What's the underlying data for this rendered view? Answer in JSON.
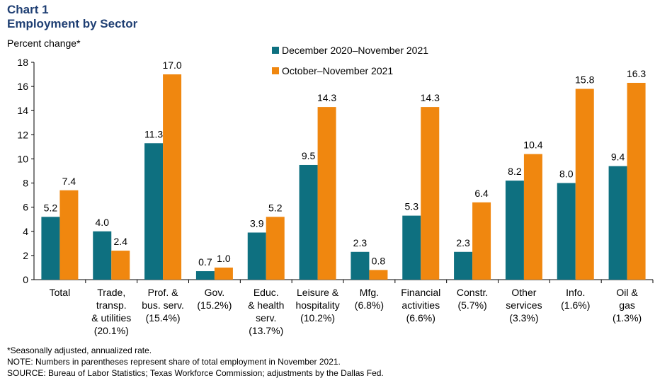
{
  "header": {
    "chart_number": "Chart 1",
    "title": "Employment by Sector",
    "units": "Percent change*"
  },
  "notes": [
    "*Seasonally adjusted, annualized rate.",
    "NOTE: Numbers in parentheses represent share of total employment in November 2021.",
    "SOURCE: Bureau of Labor Statistics; Texas Workforce Commission; adjustments by the Dallas Fed."
  ],
  "colors": {
    "series1": "#0e7080",
    "series2": "#f0870f",
    "title": "#1f3f73"
  },
  "chart_data": {
    "type": "bar",
    "title": "Employment by Sector",
    "ylabel": "Percent change*",
    "ylim": [
      0,
      18
    ],
    "yticks": [
      0,
      2,
      4,
      6,
      8,
      10,
      12,
      14,
      16,
      18
    ],
    "grid": false,
    "legend_position": "top-center",
    "categories": [
      [
        "Total"
      ],
      [
        "Trade,",
        "transp.",
        "& utilities",
        "(20.1%)"
      ],
      [
        "Prof. &",
        "bus. serv.",
        "(15.4%)"
      ],
      [
        "Gov.",
        "(15.2%)"
      ],
      [
        "Educ.",
        "& health",
        "serv.",
        "(13.7%)"
      ],
      [
        "Leisure &",
        "hospitality",
        "(10.2%)"
      ],
      [
        "Mfg.",
        "(6.8%)"
      ],
      [
        "Financial",
        "activities",
        "(6.6%)"
      ],
      [
        "Constr.",
        "(5.7%)"
      ],
      [
        "Other",
        "services",
        "(3.3%)"
      ],
      [
        "Info.",
        "(1.6%)"
      ],
      [
        "Oil &",
        "gas",
        "(1.3%)"
      ]
    ],
    "series": [
      {
        "name": "December 2020–November 2021",
        "values": [
          5.2,
          4.0,
          11.3,
          0.7,
          3.9,
          9.5,
          2.3,
          5.3,
          2.3,
          8.2,
          8.0,
          9.4
        ],
        "labels": [
          "5.2",
          "4.0",
          "11.3",
          "0.7",
          "3.9",
          "9.5",
          "2.3",
          "5.3",
          "2.3",
          "8.2",
          "8.0",
          "9.4"
        ]
      },
      {
        "name": "October–November 2021",
        "values": [
          7.4,
          2.4,
          17.0,
          1.0,
          5.2,
          14.3,
          0.8,
          14.3,
          6.4,
          10.4,
          15.8,
          16.3
        ],
        "labels": [
          "7.4",
          "2.4",
          "17.0",
          "1.0",
          "5.2",
          "14.3",
          "0.8",
          "14.3",
          "6.4",
          "10.4",
          "15.8",
          "16.3"
        ]
      }
    ]
  }
}
